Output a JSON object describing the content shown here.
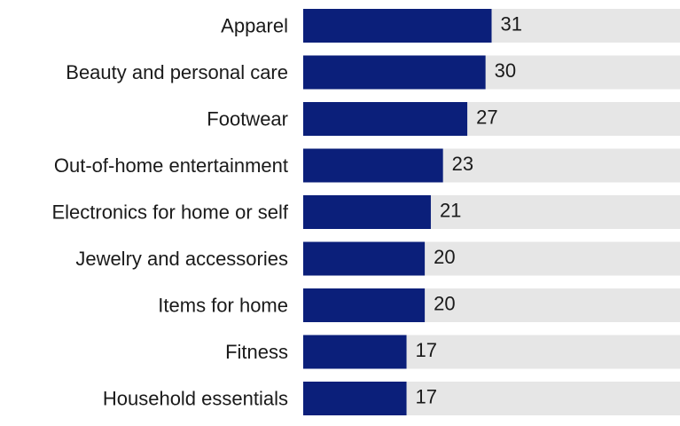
{
  "chart_data": {
    "type": "bar",
    "orientation": "horizontal",
    "categories": [
      "Apparel",
      "Beauty and personal care",
      "Footwear",
      "Out-of-home entertainment",
      "Electronics for home or self",
      "Jewelry and accessories",
      "Items for home",
      "Fitness",
      "Household essentials"
    ],
    "values": [
      31,
      30,
      27,
      23,
      21,
      20,
      20,
      17,
      17
    ],
    "data_labels": [
      "31",
      "30",
      "27",
      "23",
      "21",
      "20",
      "20",
      "17",
      "17"
    ],
    "xlim": [
      0,
      62
    ],
    "grid": false,
    "legend": "none",
    "colors": {
      "bar": "#0b1f7a",
      "track": "#e6e6e6",
      "text": "#1a1a1a"
    }
  }
}
